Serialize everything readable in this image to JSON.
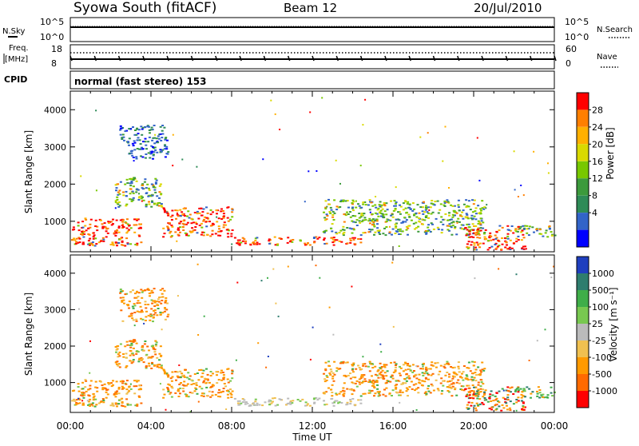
{
  "header": {
    "station": "Syowa South (fitACF)",
    "beam": "Beam 12",
    "date": "20/Jul/2010"
  },
  "strips": {
    "nsky_label": "N.Sky",
    "nsearch_label": "N.Search",
    "noise_ticks": [
      "10^5",
      "10^0"
    ],
    "freq_label_1": "Freq.",
    "freq_label_2": "[MHz]",
    "freq_ticks": [
      "18",
      "8"
    ],
    "nave_label": "Nave",
    "nave_ticks": [
      "60",
      "0"
    ],
    "cpid_label": "CPID",
    "cpid_text": "normal (fast stereo) 153"
  },
  "chart_data": [
    {
      "type": "heatmap",
      "title": "",
      "parameter": "Power",
      "colorbar_label": "Power [dB]",
      "colorbar_ticks": [
        "28",
        "24",
        "20",
        "16",
        "12",
        "8",
        "4"
      ],
      "colorbar_colors": [
        "#ff0000",
        "#ff7f00",
        "#ffb000",
        "#d9d900",
        "#78c800",
        "#3c9a3c",
        "#2e8b57",
        "#3264c8",
        "#0000ff"
      ],
      "xlabel": "Time UT",
      "ylabel": "Slant Range [km]",
      "x_ticks": [
        "00:00",
        "04:00",
        "08:00",
        "12:00",
        "16:00",
        "20:00",
        "00:00"
      ],
      "y_ticks": [
        "1000",
        "2000",
        "3000",
        "4000"
      ],
      "xlim_hours": [
        0,
        24
      ],
      "ylim_km": [
        180,
        4500
      ],
      "echo_regions": [
        {
          "t": [
            0.0,
            3.5
          ],
          "r": [
            350,
            1100
          ],
          "level": "high"
        },
        {
          "t": [
            2.2,
            4.5
          ],
          "r": [
            1400,
            2200
          ],
          "level": "mid"
        },
        {
          "t": [
            2.4,
            4.8
          ],
          "r": [
            2700,
            3600
          ],
          "level": "low"
        },
        {
          "t": [
            4.5,
            8.0
          ],
          "r": [
            600,
            1400
          ],
          "level": "high"
        },
        {
          "t": [
            8.0,
            14.5
          ],
          "r": [
            380,
            600
          ],
          "level": "high"
        },
        {
          "t": [
            12.5,
            20.5
          ],
          "r": [
            650,
            1600
          ],
          "level": "mid"
        },
        {
          "t": [
            19.5,
            22.5
          ],
          "r": [
            250,
            900
          ],
          "level": "high"
        },
        {
          "t": [
            22.0,
            24.0
          ],
          "r": [
            600,
            900
          ],
          "level": "mid"
        }
      ]
    },
    {
      "type": "heatmap",
      "title": "",
      "parameter": "Velocity",
      "colorbar_label": "Velocity [m s⁻¹]",
      "colorbar_ticks": [
        "1000",
        "500",
        "100",
        "25",
        "-25",
        "-100",
        "-500",
        "-1000"
      ],
      "colorbar_colors": [
        "#1f3fbf",
        "#2e7d6e",
        "#3fae49",
        "#78c850",
        "#bbbbbb",
        "#f0c050",
        "#ff9a00",
        "#ff6a00",
        "#ff0000"
      ],
      "xlabel": "Time UT",
      "ylabel": "Slant Range [km]",
      "x_ticks": [
        "00:00",
        "04:00",
        "08:00",
        "12:00",
        "16:00",
        "20:00",
        "00:00"
      ],
      "y_ticks": [
        "1000",
        "2000",
        "3000",
        "4000"
      ],
      "xlim_hours": [
        0,
        24
      ],
      "ylim_km": [
        180,
        4500
      ],
      "echo_regions": [
        {
          "t": [
            0.0,
            3.5
          ],
          "r": [
            350,
            1100
          ],
          "level": "neg"
        },
        {
          "t": [
            2.2,
            4.5
          ],
          "r": [
            1400,
            2200
          ],
          "level": "neg"
        },
        {
          "t": [
            2.4,
            4.8
          ],
          "r": [
            2700,
            3600
          ],
          "level": "neg"
        },
        {
          "t": [
            4.5,
            8.0
          ],
          "r": [
            600,
            1400
          ],
          "level": "neg"
        },
        {
          "t": [
            8.0,
            14.5
          ],
          "r": [
            380,
            600
          ],
          "level": "zero"
        },
        {
          "t": [
            12.5,
            20.5
          ],
          "r": [
            650,
            1600
          ],
          "level": "neg"
        },
        {
          "t": [
            19.5,
            22.5
          ],
          "r": [
            250,
            900
          ],
          "level": "mixed"
        },
        {
          "t": [
            22.0,
            24.0
          ],
          "r": [
            600,
            900
          ],
          "level": "pos"
        }
      ]
    }
  ]
}
